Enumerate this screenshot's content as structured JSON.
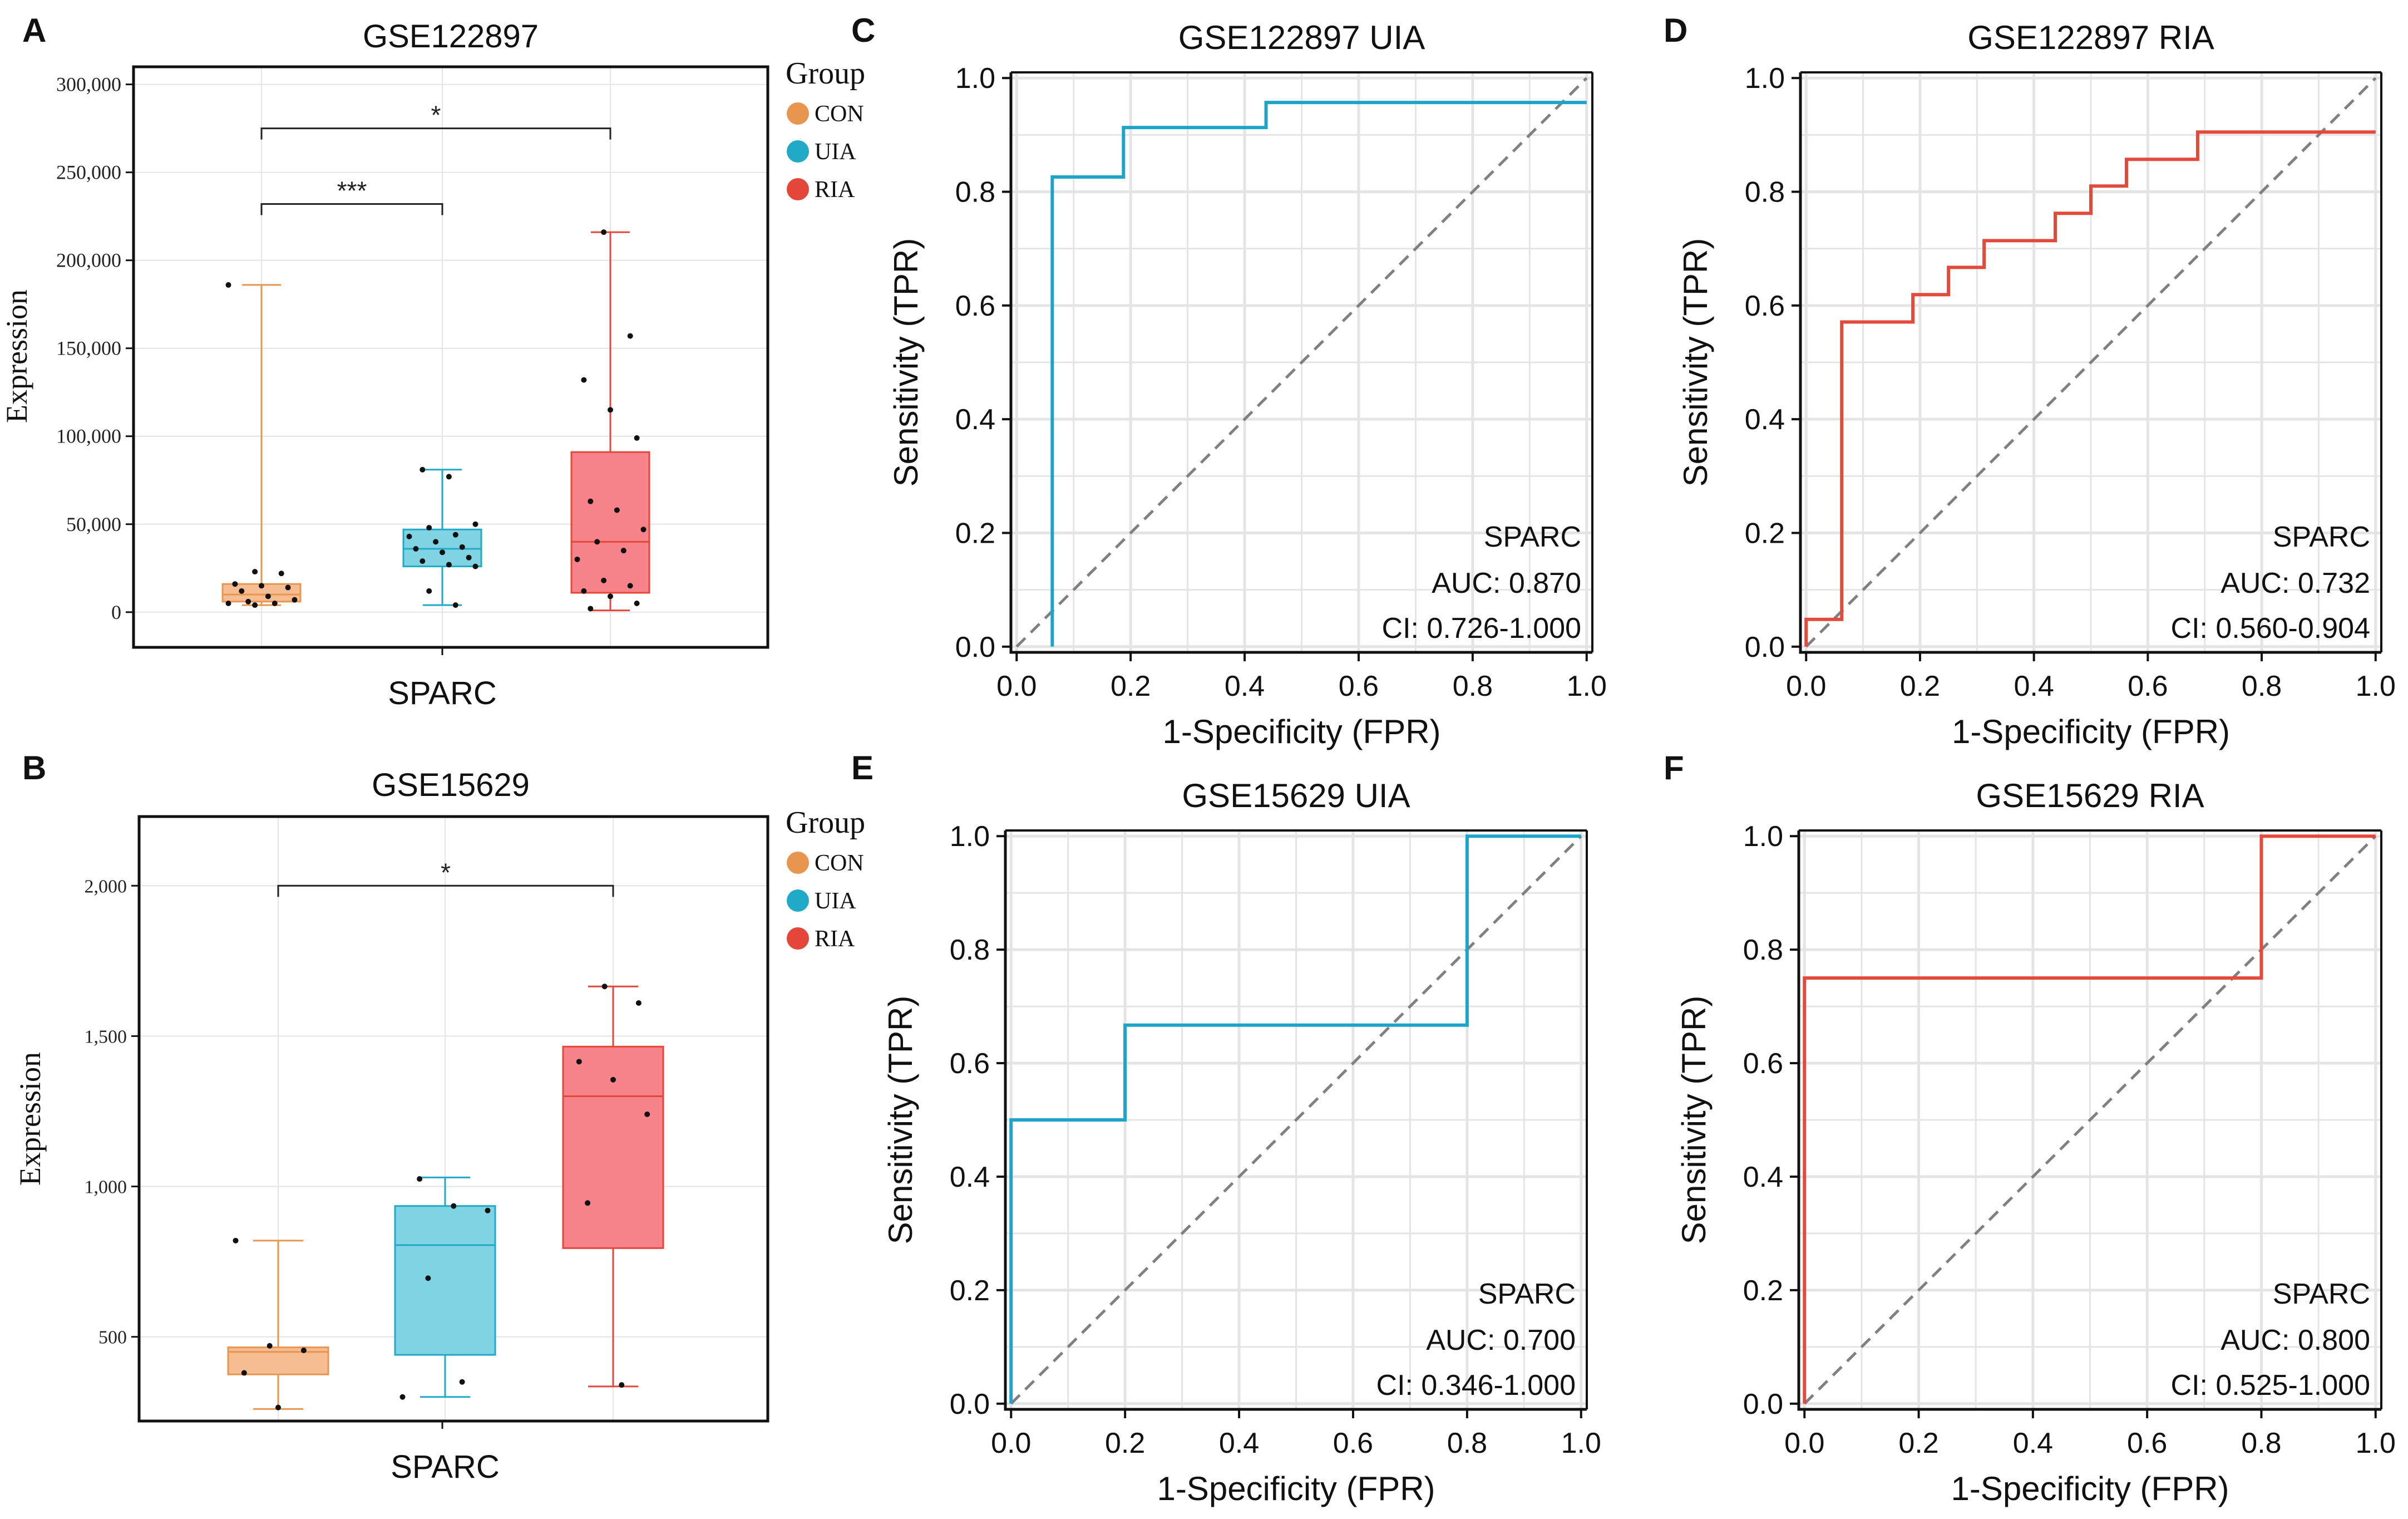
{
  "colors": {
    "con": "#E8954F",
    "con_fill": "#F6BD92",
    "uia": "#21A9C8",
    "uia_fill": "#7FD3E2",
    "ria": "#E4463A",
    "ria_fill": "#F7838A",
    "roc_uia": "#1EA4C9",
    "roc_ria": "#E24B3C",
    "grid": "#E4E4E4",
    "diagonal": "#808080"
  },
  "chart_data": [
    {
      "id": "A",
      "type": "box",
      "panel_letter": "A",
      "title": "GSE122897",
      "xlabel": "SPARC",
      "ylabel": "Expression",
      "ylim": [
        -20000,
        310000
      ],
      "yticks": [
        0,
        50000,
        100000,
        150000,
        200000,
        250000,
        300000
      ],
      "ytick_labels": [
        "0",
        "50,000",
        "100,000",
        "150,000",
        "200,000",
        "250,000",
        "300,000"
      ],
      "legend": {
        "title": "Group",
        "entries": [
          "CON",
          "UIA",
          "RIA"
        ]
      },
      "groups": [
        {
          "name": "CON",
          "min": 4000,
          "q1": 6000,
          "median": 10000,
          "q3": 16000,
          "max": 186000,
          "points": [
            186000,
            23000,
            22000,
            16000,
            15000,
            14000,
            12000,
            9000,
            7000,
            6000,
            5000,
            5000,
            4000
          ]
        },
        {
          "name": "UIA",
          "min": 4000,
          "q1": 26000,
          "median": 36000,
          "q3": 47000,
          "max": 81000,
          "points": [
            81000,
            77000,
            50000,
            48000,
            44000,
            43000,
            40000,
            37000,
            36000,
            34000,
            31000,
            29000,
            27000,
            26000,
            12000,
            4000
          ]
        },
        {
          "name": "RIA",
          "min": 1000,
          "q1": 11000,
          "median": 40000,
          "q3": 91000,
          "max": 216000,
          "points": [
            216000,
            157000,
            132000,
            115000,
            99000,
            63000,
            58000,
            47000,
            40000,
            35000,
            30000,
            18000,
            15000,
            12000,
            9000,
            5000,
            2000
          ]
        }
      ],
      "comparisons": [
        {
          "from": "CON",
          "to": "UIA",
          "label": "***",
          "y": 232000
        },
        {
          "from": "CON",
          "to": "RIA",
          "label": "*",
          "y": 275000
        }
      ]
    },
    {
      "id": "B",
      "type": "box",
      "panel_letter": "B",
      "title": "GSE15629",
      "xlabel": "SPARC",
      "ylabel": "Expression",
      "ylim": [
        220,
        2230
      ],
      "yticks": [
        500,
        1000,
        1500,
        2000
      ],
      "ytick_labels": [
        "500",
        "1,000",
        "1,500",
        "2,000"
      ],
      "legend": {
        "title": "Group",
        "entries": [
          "CON",
          "UIA",
          "RIA"
        ]
      },
      "groups": [
        {
          "name": "CON",
          "min": 260,
          "q1": 375,
          "median": 450,
          "q3": 465,
          "max": 820,
          "points": [
            820,
            470,
            455,
            380,
            265
          ]
        },
        {
          "name": "UIA",
          "min": 300,
          "q1": 440,
          "median": 805,
          "q3": 935,
          "max": 1030,
          "points": [
            1025,
            935,
            920,
            695,
            350,
            300
          ]
        },
        {
          "name": "RIA",
          "min": 335,
          "q1": 795,
          "median": 1300,
          "q3": 1465,
          "max": 1665,
          "points": [
            1665,
            1610,
            1415,
            1355,
            1240,
            945,
            340
          ]
        }
      ],
      "comparisons": [
        {
          "from": "CON",
          "to": "RIA",
          "label": "*",
          "y": 2000
        }
      ]
    },
    {
      "id": "C",
      "type": "line",
      "panel_letter": "C",
      "title": "GSE122897 UIA",
      "xlabel": "1-Specificity (FPR)",
      "ylabel": "Sensitivity (TPR)",
      "xlim": [
        0,
        1
      ],
      "ylim": [
        0,
        1
      ],
      "ticks": [
        "0.0",
        "0.2",
        "0.4",
        "0.6",
        "0.8",
        "1.0"
      ],
      "series": [
        {
          "name": "SPARC",
          "color_key": "roc_uia",
          "x": [
            0.0625,
            0.0625,
            0.1875,
            0.1875,
            0.4375,
            0.4375,
            1.0
          ],
          "y": [
            0.0,
            0.826,
            0.826,
            0.913,
            0.913,
            0.957,
            0.957
          ]
        }
      ],
      "annotation": {
        "marker": "SPARC",
        "auc": "AUC: 0.870",
        "ci": "CI: 0.726-1.000"
      }
    },
    {
      "id": "D",
      "type": "line",
      "panel_letter": "D",
      "title": "GSE122897 RIA",
      "xlabel": "1-Specificity (FPR)",
      "ylabel": "Sensitivity (TPR)",
      "xlim": [
        0,
        1
      ],
      "ylim": [
        0,
        1
      ],
      "ticks": [
        "0.0",
        "0.2",
        "0.4",
        "0.6",
        "0.8",
        "1.0"
      ],
      "series": [
        {
          "name": "SPARC",
          "color_key": "roc_ria",
          "x": [
            0.0,
            0.0,
            0.0625,
            0.0625,
            0.1875,
            0.1875,
            0.25,
            0.25,
            0.3125,
            0.3125,
            0.4375,
            0.4375,
            0.5,
            0.5,
            0.5625,
            0.5625,
            0.6875,
            0.6875,
            1.0
          ],
          "y": [
            0.0,
            0.048,
            0.048,
            0.571,
            0.571,
            0.619,
            0.619,
            0.667,
            0.667,
            0.714,
            0.714,
            0.762,
            0.762,
            0.81,
            0.81,
            0.857,
            0.857,
            0.905,
            0.905
          ]
        }
      ],
      "annotation": {
        "marker": "SPARC",
        "auc": "AUC: 0.732",
        "ci": "CI: 0.560-0.904"
      }
    },
    {
      "id": "E",
      "type": "line",
      "panel_letter": "E",
      "title": "GSE15629 UIA",
      "xlabel": "1-Specificity (FPR)",
      "ylabel": "Sensitivity (TPR)",
      "xlim": [
        0,
        1
      ],
      "ylim": [
        0,
        1
      ],
      "ticks": [
        "0.0",
        "0.2",
        "0.4",
        "0.6",
        "0.8",
        "1.0"
      ],
      "series": [
        {
          "name": "SPARC",
          "color_key": "roc_uia",
          "x": [
            0.0,
            0.0,
            0.2,
            0.2,
            0.8,
            0.8,
            1.0
          ],
          "y": [
            0.0,
            0.5,
            0.5,
            0.667,
            0.667,
            1.0,
            1.0
          ]
        }
      ],
      "annotation": {
        "marker": "SPARC",
        "auc": "AUC: 0.700",
        "ci": "CI: 0.346-1.000"
      }
    },
    {
      "id": "F",
      "type": "line",
      "panel_letter": "F",
      "title": "GSE15629 RIA",
      "xlabel": "1-Specificity (FPR)",
      "ylabel": "Sensitivity (TPR)",
      "xlim": [
        0,
        1
      ],
      "ylim": [
        0,
        1
      ],
      "ticks": [
        "0.0",
        "0.2",
        "0.4",
        "0.6",
        "0.8",
        "1.0"
      ],
      "series": [
        {
          "name": "SPARC",
          "color_key": "roc_ria",
          "x": [
            0.0,
            0.0,
            0.8,
            0.8,
            1.0
          ],
          "y": [
            0.0,
            0.75,
            0.75,
            1.0,
            1.0
          ]
        }
      ],
      "annotation": {
        "marker": "SPARC",
        "auc": "AUC: 0.800",
        "ci": "CI: 0.525-1.000"
      }
    }
  ]
}
